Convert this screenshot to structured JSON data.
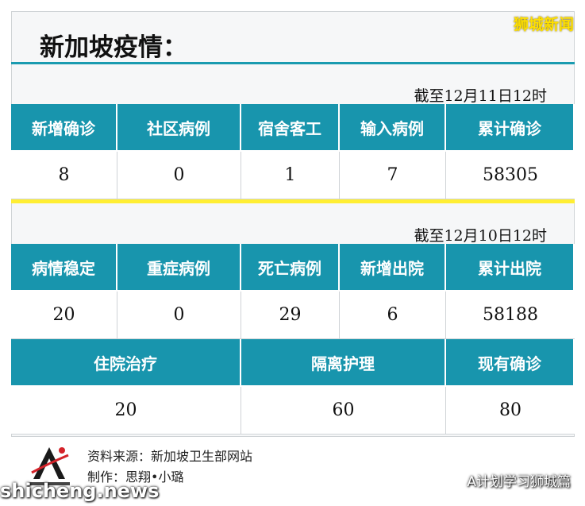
{
  "brand_tag": "狮城新闻",
  "title": "新加坡疫情：",
  "section1": {
    "date": "截至12月11日12时",
    "headers": [
      "新增确诊",
      "社区病例",
      "宿舍客工",
      "输入病例",
      "累计确诊"
    ],
    "values": [
      "8",
      "0",
      "1",
      "7",
      "58305"
    ]
  },
  "section2": {
    "date": "截至12月10日12时",
    "headers": [
      "病情稳定",
      "重症病例",
      "死亡病例",
      "新增出院",
      "累计出院"
    ],
    "values": [
      "20",
      "0",
      "29",
      "6",
      "58188"
    ]
  },
  "section3": {
    "headers": [
      "住院治疗",
      "隔离护理",
      "现有确诊"
    ],
    "values": [
      "20",
      "60",
      "80"
    ]
  },
  "credits": {
    "source": "资料来源：新加坡卫生部网站",
    "author": "制作：思翔•小璐"
  },
  "watermarks": {
    "site": "shicheng.news",
    "account": "A计划学习狮城篇"
  },
  "colors": {
    "header_teal": "#1895ad",
    "divider_yellow": "#ffee33",
    "brand_yellow": "#ffe000"
  }
}
